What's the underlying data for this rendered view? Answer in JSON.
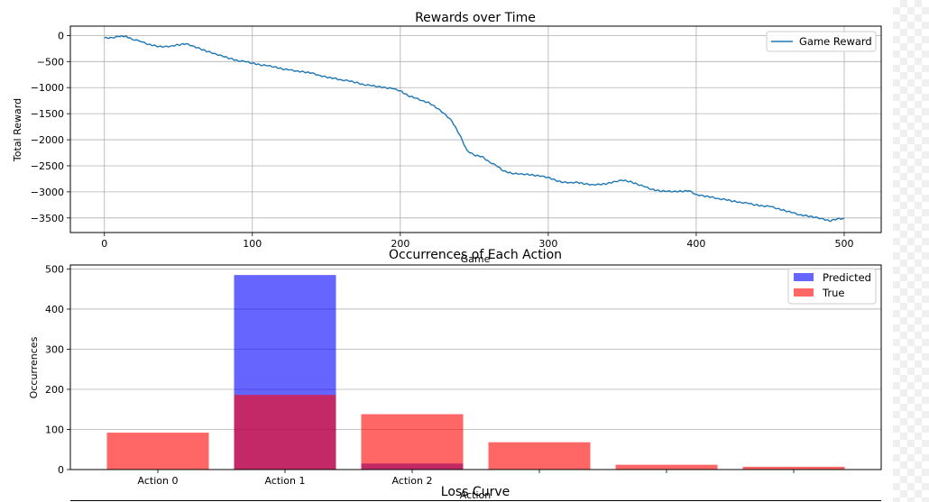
{
  "chart_data": [
    {
      "type": "line",
      "title": "Rewards over Time",
      "xlabel": "Game",
      "ylabel": "Total Reward",
      "xlim": [
        -23,
        525
      ],
      "ylim": [
        -3780,
        180
      ],
      "xticks": [
        0,
        100,
        200,
        300,
        400,
        500
      ],
      "yticks": [
        0,
        -500,
        -1000,
        -1500,
        -2000,
        -2500,
        -3000,
        -3500
      ],
      "grid": true,
      "legend_position": "top-right",
      "series": [
        {
          "name": "Game Reward",
          "color": "#1f77b4",
          "x": [
            0,
            5,
            10,
            14,
            18,
            25,
            30,
            35,
            40,
            45,
            50,
            55,
            60,
            65,
            70,
            75,
            80,
            85,
            90,
            95,
            100,
            105,
            110,
            115,
            120,
            125,
            130,
            135,
            140,
            145,
            150,
            155,
            160,
            165,
            170,
            175,
            180,
            185,
            190,
            195,
            200,
            205,
            210,
            215,
            220,
            225,
            230,
            235,
            240,
            245,
            250,
            255,
            260,
            265,
            270,
            275,
            280,
            285,
            290,
            295,
            300,
            305,
            310,
            315,
            320,
            325,
            330,
            335,
            340,
            345,
            350,
            355,
            360,
            365,
            370,
            375,
            380,
            385,
            390,
            395,
            400,
            405,
            410,
            415,
            420,
            425,
            430,
            435,
            440,
            445,
            450,
            455,
            460,
            465,
            470,
            475,
            480,
            485,
            490,
            495,
            500
          ],
          "values": [
            -50,
            -40,
            -20,
            -10,
            -60,
            -120,
            -170,
            -200,
            -220,
            -200,
            -180,
            -160,
            -200,
            -260,
            -310,
            -350,
            -400,
            -440,
            -480,
            -500,
            -530,
            -560,
            -580,
            -600,
            -640,
            -660,
            -680,
            -700,
            -720,
            -760,
            -800,
            -820,
            -850,
            -870,
            -900,
            -940,
            -960,
            -980,
            -1000,
            -1020,
            -1060,
            -1150,
            -1200,
            -1250,
            -1300,
            -1400,
            -1500,
            -1650,
            -1900,
            -2200,
            -2300,
            -2320,
            -2420,
            -2500,
            -2600,
            -2640,
            -2660,
            -2660,
            -2680,
            -2700,
            -2720,
            -2780,
            -2820,
            -2820,
            -2820,
            -2850,
            -2860,
            -2860,
            -2840,
            -2800,
            -2780,
            -2800,
            -2850,
            -2900,
            -2950,
            -2980,
            -2990,
            -2990,
            -2990,
            -2980,
            -3050,
            -3080,
            -3100,
            -3130,
            -3150,
            -3180,
            -3200,
            -3220,
            -3250,
            -3270,
            -3280,
            -3320,
            -3360,
            -3400,
            -3440,
            -3460,
            -3490,
            -3510,
            -3560,
            -3520,
            -3510
          ]
        }
      ]
    },
    {
      "type": "bar",
      "title": "Occurrences of Each Action",
      "xlabel": "Action",
      "ylabel": "Occurrences",
      "ylim": [
        0,
        510
      ],
      "yticks": [
        0,
        100,
        200,
        300,
        400,
        500
      ],
      "grid": true,
      "legend_position": "top-right",
      "categories": [
        "Action 0",
        "Action 1",
        "Action 2",
        "",
        "",
        ""
      ],
      "series": [
        {
          "name": "Predicted",
          "color": "#0000ff",
          "opacity": 0.6,
          "values": [
            0,
            485,
            15,
            0,
            0,
            0
          ]
        },
        {
          "name": "True",
          "color": "#ff0000",
          "opacity": 0.6,
          "values": [
            92,
            186,
            138,
            68,
            12,
            7
          ]
        }
      ]
    },
    {
      "type": "line",
      "title": "Loss Curve"
    }
  ]
}
